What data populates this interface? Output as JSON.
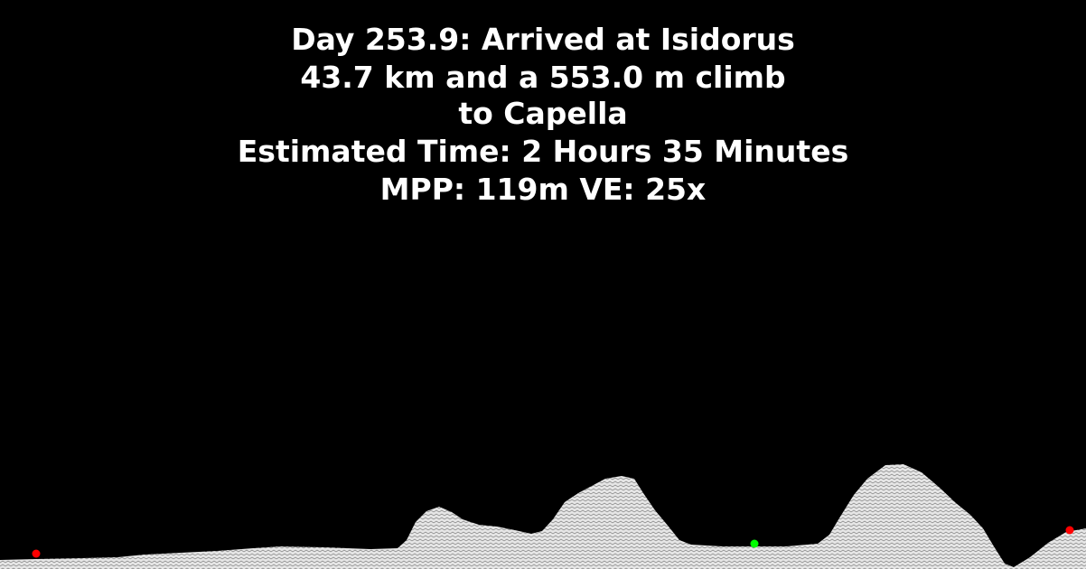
{
  "header": {
    "line1": "Day 253.9: Arrived at Isidorus",
    "line2": "43.7 km and a 553.0 m climb",
    "line3": "to Capella",
    "line4": "Estimated Time: 2 Hours 35 Minutes",
    "line5": "MPP: 119m VE: 25x"
  },
  "colors": {
    "background": "#000000",
    "text": "#ffffff",
    "terrain_fill": "#d9d9d9",
    "marker_red": "#ff0000",
    "marker_green": "#00ff00"
  }
}
